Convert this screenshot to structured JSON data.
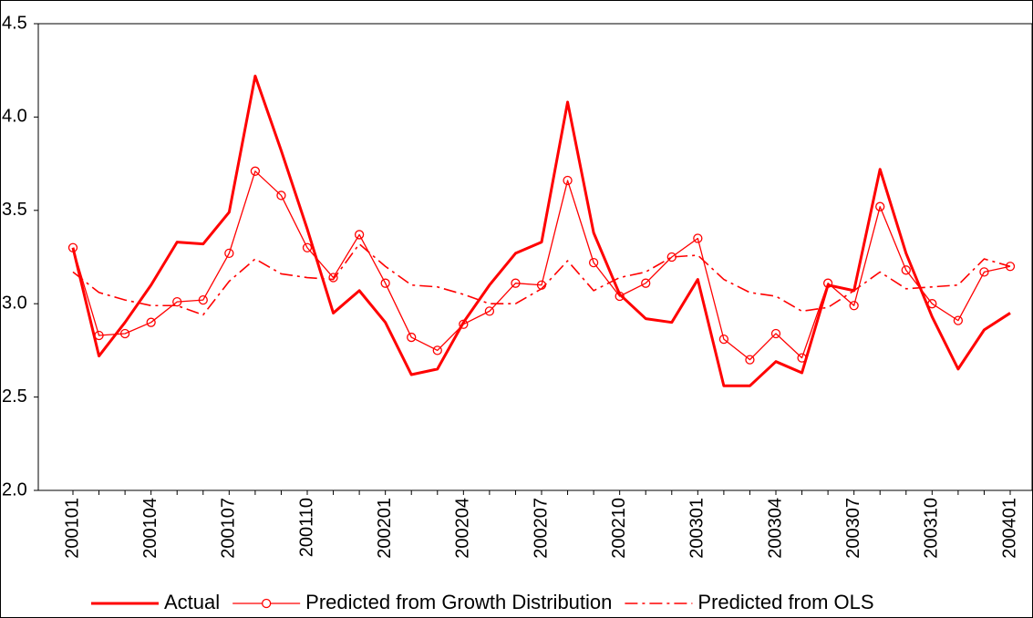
{
  "chart_data": {
    "type": "line",
    "categories": [
      "200101",
      null,
      null,
      "200104",
      null,
      null,
      "200107",
      null,
      null,
      "200110",
      null,
      null,
      "200201",
      null,
      null,
      "200204",
      null,
      null,
      "200207",
      null,
      null,
      "200210",
      null,
      null,
      "200301",
      null,
      null,
      "200304",
      null,
      null,
      "200307",
      null,
      null,
      "200310",
      null,
      null,
      "200401"
    ],
    "series": [
      {
        "name": "Actual",
        "color": "#ff0000",
        "line_width": 3,
        "line_style": "solid",
        "marker": "none",
        "values": [
          3.3,
          2.72,
          2.9,
          3.1,
          3.33,
          3.32,
          3.49,
          4.22,
          3.82,
          3.4,
          2.95,
          3.07,
          2.9,
          2.62,
          2.65,
          2.9,
          3.1,
          3.27,
          3.33,
          4.08,
          3.38,
          3.05,
          2.92,
          2.9,
          3.13,
          2.56,
          2.56,
          2.69,
          2.63,
          3.1,
          3.07,
          3.72,
          3.27,
          2.93,
          2.65,
          2.86,
          2.95
        ]
      },
      {
        "name": "Predicted from Growth Distribution",
        "color": "#ff0000",
        "line_width": 1.3,
        "line_style": "solid",
        "marker": "circle",
        "values": [
          3.3,
          2.83,
          2.84,
          2.9,
          3.01,
          3.02,
          3.27,
          3.71,
          3.58,
          3.3,
          3.14,
          3.37,
          3.11,
          2.82,
          2.75,
          2.89,
          2.96,
          3.11,
          3.1,
          3.66,
          3.22,
          3.04,
          3.11,
          3.25,
          3.35,
          2.81,
          2.7,
          2.84,
          2.71,
          3.11,
          2.99,
          3.52,
          3.18,
          3.0,
          2.91,
          3.17,
          3.2
        ]
      },
      {
        "name": "Predicted from OLS",
        "color": "#ff0000",
        "line_width": 1.6,
        "line_style": "dash-dot",
        "marker": "none",
        "values": [
          3.17,
          3.06,
          3.02,
          2.99,
          2.99,
          2.94,
          3.12,
          3.24,
          3.16,
          3.14,
          3.13,
          3.32,
          3.2,
          3.1,
          3.09,
          3.05,
          3.0,
          3.0,
          3.08,
          3.23,
          3.07,
          3.14,
          3.17,
          3.25,
          3.26,
          3.13,
          3.06,
          3.04,
          2.96,
          2.98,
          3.07,
          3.17,
          3.08,
          3.09,
          3.1,
          3.24,
          3.2
        ]
      }
    ],
    "ylim": [
      2.0,
      4.5
    ],
    "yticks": [
      {
        "value": 2,
        "label": "2.0"
      },
      2.5,
      {
        "value": 3,
        "label": "3.0"
      },
      3.5,
      {
        "value": 4,
        "label": "4.0"
      },
      4.5
    ],
    "grid": false,
    "legend": "bottom"
  }
}
